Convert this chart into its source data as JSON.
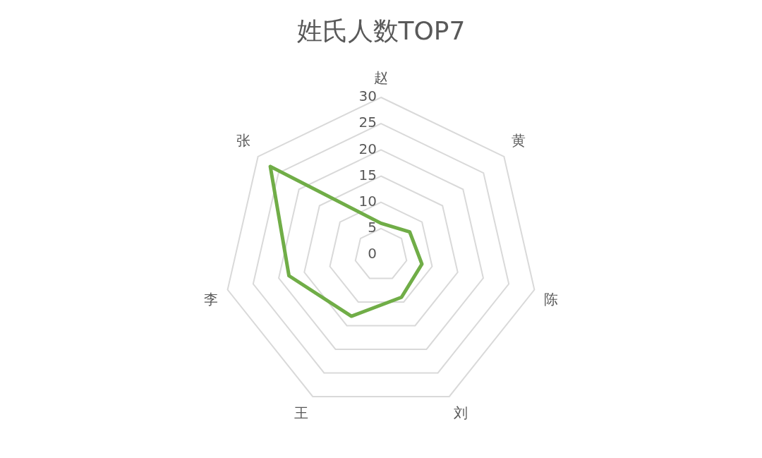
{
  "chart_data": {
    "type": "radar",
    "title": "姓氏人数TOP7",
    "categories": [
      "赵",
      "黄",
      "陈",
      "刘",
      "王",
      "李",
      "张"
    ],
    "series": [
      {
        "color": "#70ad47",
        "values": [
          6,
          7,
          8,
          9,
          13,
          18,
          27
        ]
      }
    ],
    "ylim": [
      0,
      30
    ],
    "yticks": [
      0,
      5,
      10,
      15,
      20,
      25,
      30
    ],
    "grid": true,
    "marker": "none"
  }
}
